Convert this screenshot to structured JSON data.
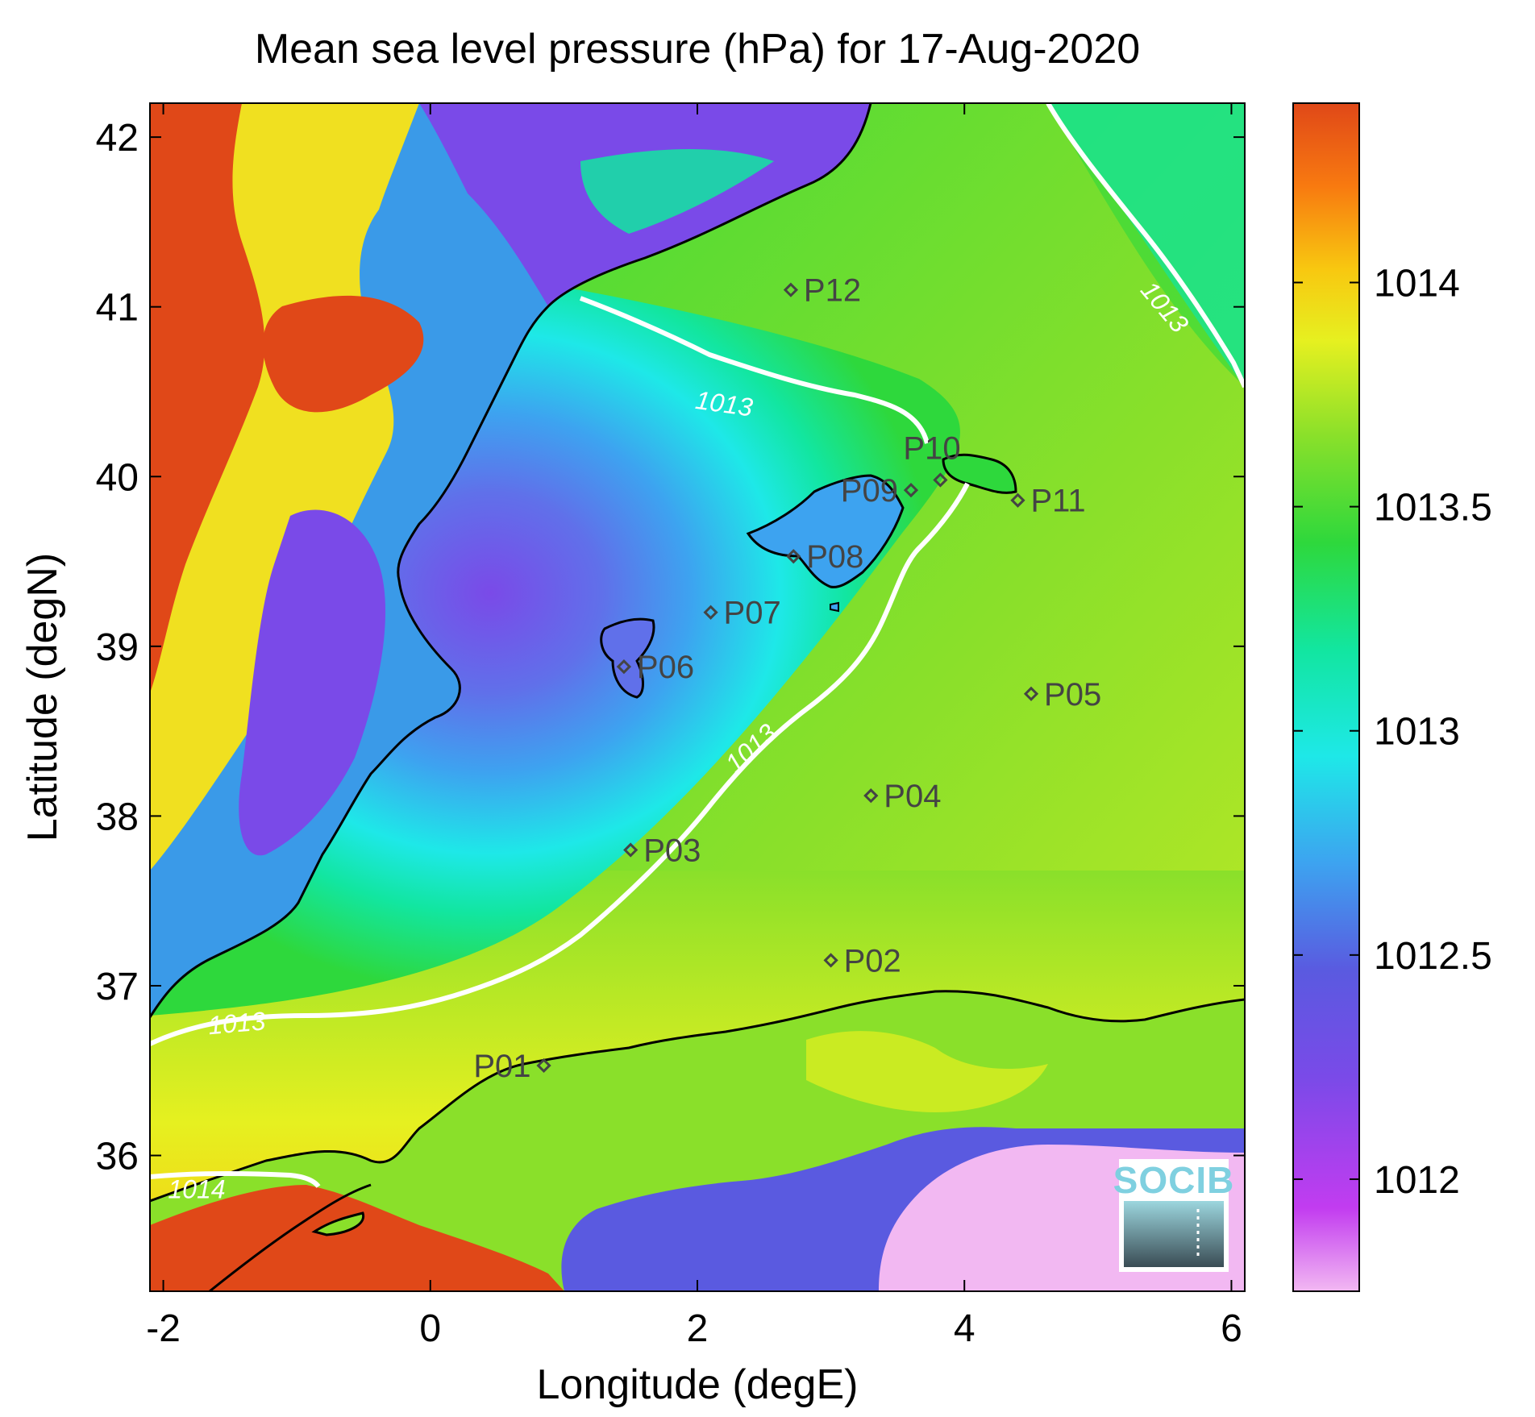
{
  "title": "Mean sea level pressure (hPa) for 17-Aug-2020",
  "xlabel": "Longitude (degE)",
  "ylabel": "Latitude (degN)",
  "map": {
    "lon_range": [
      -2.1,
      6.1
    ],
    "lat_range": [
      35.2,
      42.2
    ],
    "x_ticks": [
      {
        "v": -2,
        "label": "-2"
      },
      {
        "v": 0,
        "label": "0"
      },
      {
        "v": 2,
        "label": "2"
      },
      {
        "v": 4,
        "label": "4"
      },
      {
        "v": 6,
        "label": "6"
      }
    ],
    "y_ticks": [
      {
        "v": 36,
        "label": "36"
      },
      {
        "v": 37,
        "label": "37"
      },
      {
        "v": 38,
        "label": "38"
      },
      {
        "v": 39,
        "label": "39"
      },
      {
        "v": 40,
        "label": "40"
      },
      {
        "v": 41,
        "label": "41"
      },
      {
        "v": 42,
        "label": "42"
      }
    ],
    "stations": [
      {
        "id": "P01",
        "lon": 0.85,
        "lat": 36.53,
        "label_side": "left"
      },
      {
        "id": "P02",
        "lon": 3.0,
        "lat": 37.15,
        "label_side": "right"
      },
      {
        "id": "P03",
        "lon": 1.5,
        "lat": 37.8,
        "label_side": "right"
      },
      {
        "id": "P04",
        "lon": 3.3,
        "lat": 38.12,
        "label_side": "right"
      },
      {
        "id": "P05",
        "lon": 4.5,
        "lat": 38.72,
        "label_side": "right"
      },
      {
        "id": "P06",
        "lon": 1.45,
        "lat": 38.88,
        "label_side": "right"
      },
      {
        "id": "P07",
        "lon": 2.1,
        "lat": 39.2,
        "label_side": "right"
      },
      {
        "id": "P08",
        "lon": 2.72,
        "lat": 39.53,
        "label_side": "right"
      },
      {
        "id": "P09",
        "lon": 3.6,
        "lat": 39.92,
        "label_side": "left"
      },
      {
        "id": "P10",
        "lon": 3.82,
        "lat": 39.98,
        "label_side": "above"
      },
      {
        "id": "P11",
        "lon": 4.4,
        "lat": 39.86,
        "label_side": "right"
      },
      {
        "id": "P12",
        "lon": 2.7,
        "lat": 41.1,
        "label_side": "right"
      }
    ],
    "contour_labels": [
      {
        "text": "1013",
        "lon": -1.45,
        "lat": 36.78,
        "angle": -5
      },
      {
        "text": "1013",
        "lon": 2.2,
        "lat": 40.43,
        "angle": 8
      },
      {
        "text": "1013",
        "lon": 2.4,
        "lat": 38.4,
        "angle": -42
      },
      {
        "text": "1013",
        "lon": 5.5,
        "lat": 41.0,
        "angle": 50
      },
      {
        "text": "1014",
        "lon": -1.75,
        "lat": 35.8,
        "angle": 0
      }
    ]
  },
  "colorbar": {
    "range": [
      1011.75,
      1014.4
    ],
    "ticks": [
      {
        "v": 1012,
        "label": "1012"
      },
      {
        "v": 1012.5,
        "label": "1012.5"
      },
      {
        "v": 1013,
        "label": "1013"
      },
      {
        "v": 1013.5,
        "label": "1013.5"
      },
      {
        "v": 1014,
        "label": "1014"
      }
    ],
    "colors": [
      "#f2b8f2",
      "#c23cf0",
      "#7a4ae8",
      "#5a5ae0",
      "#3da3f0",
      "#1ee8e8",
      "#12e6a0",
      "#2ed83c",
      "#8ae02a",
      "#e6f020",
      "#f8c810",
      "#f87a10",
      "#e04818"
    ]
  },
  "logo": {
    "text": "SOCIB"
  }
}
